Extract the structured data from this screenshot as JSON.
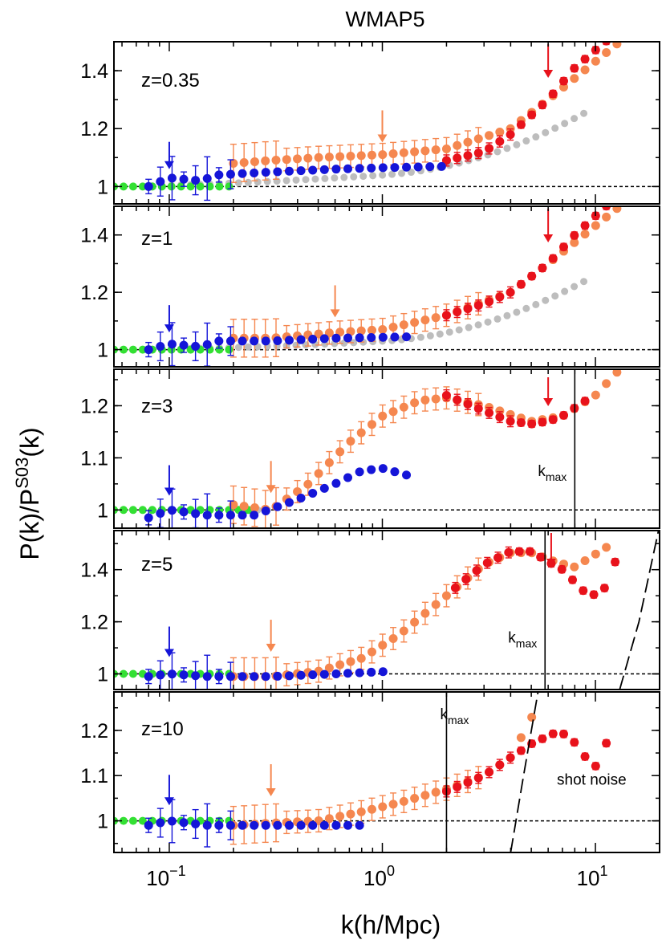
{
  "chart_data": {
    "type": "scatter",
    "title": "WMAP5",
    "xlabel": "k(h/Mpc)",
    "ylabel": "P(k)/P^S03(k)",
    "xscale": "log",
    "xlim": [
      0.055,
      20
    ],
    "x_ticks": [
      {
        "base": "10",
        "exp": "−1",
        "value": 0.1
      },
      {
        "base": "10",
        "exp": "0",
        "value": 1
      },
      {
        "base": "10",
        "exp": "1",
        "value": 10
      }
    ],
    "colors": {
      "blue": "#1515d8",
      "green": "#33e033",
      "gray": "#bdbdbd",
      "orange": "#f5874f",
      "red": "#e8121b",
      "black": "#000000"
    },
    "panels": [
      {
        "label": "z=0.35",
        "ylim": [
          0.94,
          1.5
        ],
        "yticks": [
          {
            "v": 1,
            "t": "1"
          },
          {
            "v": 1.2,
            "t": "1.2"
          },
          {
            "v": 1.4,
            "t": "1.4"
          }
        ],
        "arrows": [
          {
            "x": 0.1,
            "color": "blue"
          },
          {
            "x": 1.0,
            "color": "orange"
          },
          {
            "x": 6.0,
            "color": "red"
          }
        ],
        "gray": {
          "kmin": 0.055,
          "kmax": 9,
          "a": 0.028,
          "p": 1.5,
          "s": 0.03
        },
        "green": {
          "kmin": 0.055,
          "kmax": 0.2,
          "a": 0.0,
          "p": 1.5,
          "s": 0.0
        },
        "blue": {
          "kmin": 0.08,
          "kmax": 2.1,
          "f": [
            [
              0.08,
              1.0
            ],
            [
              0.1,
              1.03
            ],
            [
              0.14,
              1.02
            ],
            [
              0.17,
              1.04
            ],
            [
              0.3,
              1.05
            ],
            [
              0.6,
              1.06
            ],
            [
              1.0,
              1.065
            ],
            [
              2.1,
              1.07
            ]
          ]
        },
        "orange": {
          "kmin": 0.2,
          "kmax": 13,
          "f": [
            [
              0.2,
              1.08
            ],
            [
              0.3,
              1.09
            ],
            [
              0.5,
              1.1
            ],
            [
              1.0,
              1.11
            ],
            [
              2.0,
              1.13
            ],
            [
              4.0,
              1.2
            ],
            [
              6.0,
              1.3
            ],
            [
              13.0,
              1.5
            ]
          ]
        },
        "red": {
          "kmin": 2,
          "kmax": 12,
          "f": [
            [
              2.0,
              1.09
            ],
            [
              3.0,
              1.12
            ],
            [
              4.0,
              1.18
            ],
            [
              6.0,
              1.3
            ],
            [
              8.0,
              1.41
            ],
            [
              12.0,
              1.52
            ]
          ]
        },
        "kmax": null,
        "shot": null
      },
      {
        "label": "z=1",
        "ylim": [
          0.94,
          1.5
        ],
        "yticks": [
          {
            "v": 1,
            "t": "1"
          },
          {
            "v": 1.2,
            "t": "1.2"
          },
          {
            "v": 1.4,
            "t": "1.4"
          }
        ],
        "arrows": [
          {
            "x": 0.1,
            "color": "blue"
          },
          {
            "x": 0.6,
            "color": "orange"
          },
          {
            "x": 6.0,
            "color": "red"
          }
        ],
        "gray": {
          "kmin": 0.055,
          "kmax": 9,
          "a": 0.02,
          "p": 1.7,
          "s": 0.03
        },
        "green": {
          "kmin": 0.055,
          "kmax": 0.2,
          "a": 0.0,
          "p": 1.5,
          "s": 0.0
        },
        "blue": {
          "kmin": 0.08,
          "kmax": 1.4,
          "f": [
            [
              0.08,
              1.0
            ],
            [
              0.1,
              1.02
            ],
            [
              0.14,
              1.01
            ],
            [
              0.17,
              1.03
            ],
            [
              0.3,
              1.03
            ],
            [
              0.6,
              1.04
            ],
            [
              1.4,
              1.045
            ]
          ]
        },
        "orange": {
          "kmin": 0.2,
          "kmax": 13,
          "f": [
            [
              0.2,
              1.04
            ],
            [
              0.3,
              1.04
            ],
            [
              0.6,
              1.06
            ],
            [
              1.0,
              1.07
            ],
            [
              2.0,
              1.12
            ],
            [
              4.0,
              1.2
            ],
            [
              6.0,
              1.3
            ],
            [
              13.0,
              1.5
            ]
          ]
        },
        "red": {
          "kmin": 2,
          "kmax": 12,
          "f": [
            [
              2.0,
              1.12
            ],
            [
              3.0,
              1.16
            ],
            [
              4.0,
              1.2
            ],
            [
              6.0,
              1.3
            ],
            [
              8.0,
              1.4
            ],
            [
              12.0,
              1.52
            ]
          ]
        },
        "kmax": null,
        "shot": null
      },
      {
        "label": "z=3",
        "ylim": [
          0.965,
          1.27
        ],
        "yticks": [
          {
            "v": 1,
            "t": "1"
          },
          {
            "v": 1.1,
            "t": "1.1"
          },
          {
            "v": 1.2,
            "t": "1.2"
          }
        ],
        "arrows": [
          {
            "x": 0.1,
            "color": "blue"
          },
          {
            "x": 0.3,
            "color": "orange"
          },
          {
            "x": 6.0,
            "color": "red"
          }
        ],
        "gray": {
          "kmin": 0.055,
          "kmax": 0.3,
          "a": 0.0,
          "p": 1.5,
          "s": 0.0
        },
        "green": {
          "kmin": 0.055,
          "kmax": 0.25,
          "a": 0.0,
          "p": 1.5,
          "s": 0.0
        },
        "blue": {
          "kmin": 0.08,
          "kmax": 1.35,
          "f": [
            [
              0.08,
              0.985
            ],
            [
              0.1,
              1.0
            ],
            [
              0.15,
              0.99
            ],
            [
              0.25,
              0.99
            ],
            [
              0.4,
              1.02
            ],
            [
              0.6,
              1.05
            ],
            [
              0.8,
              1.075
            ],
            [
              1.0,
              1.08
            ],
            [
              1.35,
              1.065
            ]
          ]
        },
        "orange": {
          "kmin": 0.2,
          "kmax": 13,
          "f": [
            [
              0.2,
              1.01
            ],
            [
              0.3,
              1.0
            ],
            [
              0.45,
              1.05
            ],
            [
              0.7,
              1.13
            ],
            [
              1.0,
              1.18
            ],
            [
              1.5,
              1.21
            ],
            [
              2.0,
              1.215
            ],
            [
              3.0,
              1.2
            ],
            [
              5.0,
              1.17
            ],
            [
              7.0,
              1.18
            ],
            [
              10.0,
              1.22
            ],
            [
              13.0,
              1.27
            ]
          ]
        },
        "red": {
          "kmin": 2,
          "kmax": 9,
          "f": [
            [
              2.0,
              1.22
            ],
            [
              3.0,
              1.19
            ],
            [
              4.0,
              1.17
            ],
            [
              5.0,
              1.165
            ],
            [
              6.0,
              1.17
            ],
            [
              7.0,
              1.18
            ],
            [
              9.0,
              1.21
            ]
          ]
        },
        "kmax": {
          "x": 8,
          "text": "k",
          "sub": "max"
        },
        "shot": null
      },
      {
        "label": "z=5",
        "ylim": [
          0.94,
          1.55
        ],
        "yticks": [
          {
            "v": 1,
            "t": "1"
          },
          {
            "v": 1.2,
            "t": "1.2"
          },
          {
            "v": 1.4,
            "t": "1.4"
          }
        ],
        "arrows": [
          {
            "x": 0.1,
            "color": "blue"
          },
          {
            "x": 0.3,
            "color": "orange"
          },
          {
            "x": 6.2,
            "color": "red"
          }
        ],
        "gray": null,
        "green": {
          "kmin": 0.055,
          "kmax": 0.2,
          "a": 0.0,
          "p": 1.5,
          "s": 0.0
        },
        "blue": {
          "kmin": 0.08,
          "kmax": 1.1,
          "f": [
            [
              0.08,
              0.99
            ],
            [
              0.1,
              1.0
            ],
            [
              0.15,
              0.99
            ],
            [
              0.3,
              0.99
            ],
            [
              0.6,
              1.0
            ],
            [
              1.1,
              1.01
            ]
          ]
        },
        "orange": {
          "kmin": 0.2,
          "kmax": 12,
          "f": [
            [
              0.2,
              0.99
            ],
            [
              0.3,
              0.99
            ],
            [
              0.5,
              1.01
            ],
            [
              0.8,
              1.06
            ],
            [
              1.2,
              1.15
            ],
            [
              2.0,
              1.3
            ],
            [
              3.0,
              1.42
            ],
            [
              4.0,
              1.465
            ],
            [
              5.0,
              1.465
            ],
            [
              6.5,
              1.43
            ],
            [
              8.0,
              1.41
            ],
            [
              12.0,
              1.5
            ]
          ]
        },
        "red": {
          "kmin": 2.2,
          "kmax": 13,
          "f": [
            [
              2.2,
              1.33
            ],
            [
              3.0,
              1.42
            ],
            [
              4.0,
              1.47
            ],
            [
              5.0,
              1.47
            ],
            [
              6.0,
              1.43
            ],
            [
              7.0,
              1.4
            ],
            [
              9.0,
              1.31
            ],
            [
              10.5,
              1.3
            ],
            [
              12.0,
              1.38
            ],
            [
              13.0,
              1.51
            ]
          ]
        },
        "kmax": {
          "x": 5.8,
          "text": "k",
          "sub": "max"
        },
        "shot": [
          [
            13.0,
            0.94
          ],
          [
            16.0,
            1.2
          ],
          [
            20.0,
            1.57
          ]
        ]
      },
      {
        "label": "z=10",
        "ylim": [
          0.93,
          1.285
        ],
        "yticks": [
          {
            "v": 1,
            "t": "1"
          },
          {
            "v": 1.1,
            "t": "1.1"
          },
          {
            "v": 1.2,
            "t": "1.2"
          }
        ],
        "arrows": [
          {
            "x": 0.1,
            "color": "blue"
          },
          {
            "x": 0.3,
            "color": "orange"
          }
        ],
        "gray": null,
        "green": {
          "kmin": 0.055,
          "kmax": 0.2,
          "a": 0.0,
          "p": 1.5,
          "s": 0.0
        },
        "blue": {
          "kmin": 0.08,
          "kmax": 0.85,
          "f": [
            [
              0.08,
              0.99
            ],
            [
              0.1,
              1.0
            ],
            [
              0.15,
              0.99
            ],
            [
              0.3,
              0.99
            ],
            [
              0.85,
              0.99
            ]
          ]
        },
        "orange": {
          "kmin": 0.2,
          "kmax": 5.3,
          "f": [
            [
              0.2,
              0.99
            ],
            [
              0.3,
              0.995
            ],
            [
              0.5,
              1.0
            ],
            [
              0.8,
              1.02
            ],
            [
              1.2,
              1.04
            ],
            [
              2.0,
              1.07
            ],
            [
              3.0,
              1.1
            ],
            [
              4.0,
              1.14
            ],
            [
              5.3,
              1.25
            ]
          ]
        },
        "red": {
          "kmin": 2,
          "kmax": 12,
          "f": [
            [
              2.0,
              1.065
            ],
            [
              3.0,
              1.1
            ],
            [
              4.0,
              1.14
            ],
            [
              5.0,
              1.17
            ],
            [
              6.5,
              1.195
            ],
            [
              7.5,
              1.19
            ],
            [
              9.0,
              1.14
            ],
            [
              10.0,
              1.12
            ],
            [
              12.0,
              1.2
            ]
          ]
        },
        "kmax": {
          "x": 2,
          "text": "k",
          "sub": "max"
        },
        "shot": [
          [
            4.0,
            0.93
          ],
          [
            4.6,
            1.1
          ],
          [
            5.4,
            1.29
          ]
        ],
        "shot_label": "shot noise"
      }
    ]
  }
}
